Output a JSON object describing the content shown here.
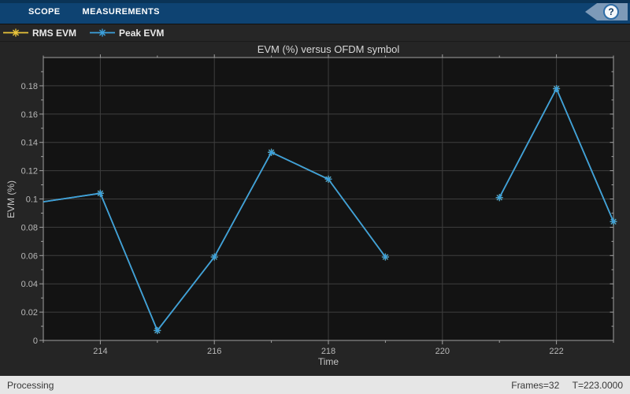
{
  "toolbar": {
    "tabs": [
      {
        "label": "SCOPE"
      },
      {
        "label": "MEASUREMENTS"
      }
    ],
    "help_glyph": "?"
  },
  "legend": {
    "items": [
      {
        "label": "RMS EVM",
        "color": "#e9c43a"
      },
      {
        "label": "Peak EVM",
        "color": "#3ca0dc"
      }
    ]
  },
  "chart_data": {
    "type": "line",
    "title": "EVM (%) versus OFDM symbol",
    "xlabel": "Time",
    "ylabel": "EVM (%)",
    "xlim": [
      213,
      223
    ],
    "ylim": [
      0,
      0.2
    ],
    "grid": true,
    "legend_position": "top-bar",
    "plot_bg": "#131313",
    "grid_color": "#3e3e3e",
    "axis_color": "#a0a0a0",
    "tick_label_color": "#b8b8b8",
    "x_ticks": [
      {
        "v": 214,
        "label": "214"
      },
      {
        "v": 216,
        "label": "216"
      },
      {
        "v": 218,
        "label": "218"
      },
      {
        "v": 220,
        "label": "220"
      },
      {
        "v": 222,
        "label": "222"
      }
    ],
    "x_minor_ticks": [
      213,
      215,
      217,
      219,
      221,
      223
    ],
    "y_ticks": [
      {
        "v": 0,
        "label": "0"
      },
      {
        "v": 0.02,
        "label": "0.02"
      },
      {
        "v": 0.04,
        "label": "0.04"
      },
      {
        "v": 0.06,
        "label": "0.06"
      },
      {
        "v": 0.08,
        "label": "0.08"
      },
      {
        "v": 0.1,
        "label": "0.1"
      },
      {
        "v": 0.12,
        "label": "0.12"
      },
      {
        "v": 0.14,
        "label": "0.14"
      },
      {
        "v": 0.16,
        "label": "0.16"
      },
      {
        "v": 0.18,
        "label": "0.18"
      }
    ],
    "y_minor_ticks": [
      0.01,
      0.03,
      0.05,
      0.07,
      0.09,
      0.11,
      0.13,
      0.15,
      0.17,
      0.19
    ],
    "series": [
      {
        "name": "RMS EVM",
        "color": "#e9c43a",
        "marker": "asterisk",
        "points": [
          [
            213,
            0.098
          ],
          [
            214,
            0.104
          ],
          [
            215,
            0.007
          ],
          [
            216,
            0.059
          ],
          [
            217,
            0.133
          ],
          [
            218,
            0.114
          ],
          [
            219,
            0.059
          ],
          [
            220,
            null
          ],
          [
            221,
            0.101
          ],
          [
            222,
            0.178
          ],
          [
            223,
            0.084
          ]
        ]
      },
      {
        "name": "Peak EVM",
        "color": "#3ca0dc",
        "marker": "asterisk",
        "points": [
          [
            213,
            0.098
          ],
          [
            214,
            0.104
          ],
          [
            215,
            0.007
          ],
          [
            216,
            0.059
          ],
          [
            217,
            0.133
          ],
          [
            218,
            0.114
          ],
          [
            219,
            0.059
          ],
          [
            220,
            null
          ],
          [
            221,
            0.101
          ],
          [
            222,
            0.178
          ],
          [
            223,
            0.084
          ]
        ]
      }
    ]
  },
  "status": {
    "left": "Processing",
    "frames": "Frames=32",
    "time": "T=223.0000"
  }
}
